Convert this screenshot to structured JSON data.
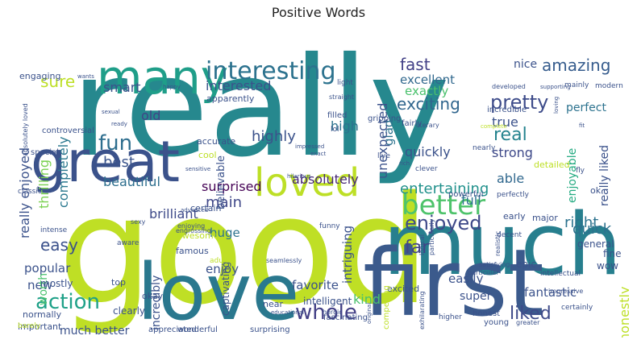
{
  "chart_data": {
    "type": "wordcloud",
    "title": "Positive Words",
    "words": [
      {
        "text": "really",
        "weight": 1.0,
        "color": "#26888e"
      },
      {
        "text": "good",
        "weight": 0.95,
        "color": "#bfdf25"
      },
      {
        "text": "much",
        "weight": 0.62,
        "color": "#277f8e"
      },
      {
        "text": "first",
        "weight": 0.62,
        "color": "#3b5a8c"
      },
      {
        "text": "love",
        "weight": 0.55,
        "color": "#2a788e"
      },
      {
        "text": "great",
        "weight": 0.45,
        "color": "#3b528b"
      },
      {
        "text": "many",
        "weight": 0.38,
        "color": "#1f9e89"
      },
      {
        "text": "loved",
        "weight": 0.36,
        "color": "#bddf26"
      },
      {
        "text": "interesting",
        "weight": 0.22,
        "color": "#2c728e"
      },
      {
        "text": "better",
        "weight": 0.18,
        "color": "#4ec36b"
      },
      {
        "text": "action",
        "weight": 0.15,
        "color": "#1fa188"
      },
      {
        "text": "whole",
        "weight": 0.15,
        "color": "#423f85"
      },
      {
        "text": "fun",
        "weight": 0.14,
        "color": "#2e6e8e"
      },
      {
        "text": "enjoyed",
        "weight": 0.12,
        "color": "#3e4989"
      },
      {
        "text": "pretty",
        "weight": 0.12,
        "color": "#3e4c8a"
      },
      {
        "text": "fast",
        "weight": 0.11,
        "color": "#424086"
      },
      {
        "text": "exciting",
        "weight": 0.11,
        "color": "#31668e"
      },
      {
        "text": "amazing",
        "weight": 0.1,
        "color": "#365c8d"
      },
      {
        "text": "easy",
        "weight": 0.1,
        "color": "#3b518b"
      },
      {
        "text": "far",
        "weight": 0.1,
        "color": "#414487"
      },
      {
        "text": "liked",
        "weight": 0.1,
        "color": "#3e4a89"
      },
      {
        "text": "real",
        "weight": 0.09,
        "color": "#25838e"
      },
      {
        "text": "quick",
        "weight": 0.09,
        "color": "#2d718e"
      },
      {
        "text": "right",
        "weight": 0.09,
        "color": "#2c728e"
      },
      {
        "text": "sure",
        "weight": 0.09,
        "color": "#bddf26"
      },
      {
        "text": "highly",
        "weight": 0.08,
        "color": "#3b528b"
      },
      {
        "text": "best",
        "weight": 0.08,
        "color": "#3a548c"
      },
      {
        "text": "beautiful",
        "weight": 0.08,
        "color": "#2e6f8e"
      },
      {
        "text": "absolutely",
        "weight": 0.08,
        "color": "#482878"
      },
      {
        "text": "entertaining",
        "weight": 0.08,
        "color": "#21918c"
      },
      {
        "text": "main",
        "weight": 0.08,
        "color": "#3f4788"
      },
      {
        "text": "brilliant",
        "weight": 0.08,
        "color": "#3e4a89"
      },
      {
        "text": "surprised",
        "weight": 0.07,
        "color": "#440154"
      },
      {
        "text": "really enjoyed",
        "weight": 0.08,
        "color": "#3b528b"
      },
      {
        "text": "thrilling",
        "weight": 0.07,
        "color": "#7ad151"
      },
      {
        "text": "completely",
        "weight": 0.07,
        "color": "#2a788e"
      },
      {
        "text": "old",
        "weight": 0.07,
        "color": "#414487"
      },
      {
        "text": "smart",
        "weight": 0.07,
        "color": "#3b528b"
      },
      {
        "text": "interested",
        "weight": 0.07,
        "color": "#3b528b"
      },
      {
        "text": "excellent",
        "weight": 0.07,
        "color": "#31688e"
      },
      {
        "text": "exactly",
        "weight": 0.07,
        "color": "#4ac16d"
      },
      {
        "text": "high",
        "weight": 0.07,
        "color": "#2c728e"
      },
      {
        "text": "quickly",
        "weight": 0.07,
        "color": "#3b528b"
      },
      {
        "text": "strong",
        "weight": 0.07,
        "color": "#3e4989"
      },
      {
        "text": "glad",
        "weight": 0.07,
        "color": "#2c728e"
      },
      {
        "text": "unexpected",
        "weight": 0.07,
        "color": "#3b528b"
      },
      {
        "text": "true",
        "weight": 0.07,
        "color": "#3b528b"
      },
      {
        "text": "perfect",
        "weight": 0.06,
        "color": "#2c728e"
      },
      {
        "text": "nice",
        "weight": 0.06,
        "color": "#3b528b"
      },
      {
        "text": "able",
        "weight": 0.07,
        "color": "#31688e"
      },
      {
        "text": "enjoyable",
        "weight": 0.06,
        "color": "#25ab82"
      },
      {
        "text": "really liked",
        "weight": 0.06,
        "color": "#3b528b"
      },
      {
        "text": "full",
        "weight": 0.07,
        "color": "#2c728e"
      },
      {
        "text": "popular",
        "weight": 0.06,
        "color": "#3b528b"
      },
      {
        "text": "new",
        "weight": 0.06,
        "color": "#3b528b"
      },
      {
        "text": "worth",
        "weight": 0.06,
        "color": "#4ac16d"
      },
      {
        "text": "huge",
        "weight": 0.06,
        "color": "#2c728e"
      },
      {
        "text": "enjoy",
        "weight": 0.06,
        "color": "#3b528b"
      },
      {
        "text": "favorite",
        "weight": 0.06,
        "color": "#3b528b"
      },
      {
        "text": "kind",
        "weight": 0.07,
        "color": "#4ac16d"
      },
      {
        "text": "intriguing",
        "weight": 0.06,
        "color": "#3b528b"
      },
      {
        "text": "easily",
        "weight": 0.06,
        "color": "#3b528b"
      },
      {
        "text": "fantastic",
        "weight": 0.06,
        "color": "#3b528b"
      },
      {
        "text": "super",
        "weight": 0.06,
        "color": "#3b528b"
      },
      {
        "text": "honestly",
        "weight": 0.06,
        "color": "#bddf26"
      },
      {
        "text": "much better",
        "weight": 0.06,
        "color": "#3b528b"
      },
      {
        "text": "incredibly",
        "weight": 0.06,
        "color": "#3b528b"
      },
      {
        "text": "believable",
        "weight": 0.05,
        "color": "#3b528b"
      },
      {
        "text": "mostly",
        "weight": 0.05,
        "color": "#3b528b"
      },
      {
        "text": "intelligent",
        "weight": 0.05,
        "color": "#3b528b"
      },
      {
        "text": "wow",
        "weight": 0.05,
        "color": "#3b528b"
      },
      {
        "text": "epic",
        "weight": 0.05,
        "color": "#3b528b"
      },
      {
        "text": "fine",
        "weight": 0.05,
        "color": "#3b528b"
      },
      {
        "text": "general",
        "weight": 0.05,
        "color": "#3b528b"
      },
      {
        "text": "captivating",
        "weight": 0.05,
        "color": "#3b528b"
      },
      {
        "text": "accurate",
        "weight": 0.04,
        "color": "#3b528b"
      },
      {
        "text": "cool",
        "weight": 0.04,
        "color": "#bddf26"
      },
      {
        "text": "detailed",
        "weight": 0.04,
        "color": "#bddf26"
      },
      {
        "text": "ok",
        "weight": 0.04,
        "color": "#3b528b"
      },
      {
        "text": "early",
        "weight": 0.04,
        "color": "#3b528b"
      },
      {
        "text": "major",
        "weight": 0.04,
        "color": "#3b528b"
      },
      {
        "text": "certain",
        "weight": 0.04,
        "color": "#3b528b"
      },
      {
        "text": "clearly",
        "weight": 0.04,
        "color": "#3b528b"
      },
      {
        "text": "normally",
        "weight": 0.04,
        "color": "#3b528b"
      },
      {
        "text": "important",
        "weight": 0.04,
        "color": "#3b528b"
      },
      {
        "text": "top",
        "weight": 0.04,
        "color": "#3b528b"
      },
      {
        "text": "okay",
        "weight": 0.04,
        "color": "#3b528b"
      },
      {
        "text": "near",
        "weight": 0.04,
        "color": "#3b528b"
      },
      {
        "text": "awesome",
        "weight": 0.04,
        "color": "#bddf26"
      },
      {
        "text": "famous",
        "weight": 0.04,
        "color": "#3b528b"
      },
      {
        "text": "excited",
        "weight": 0.04,
        "color": "#3b528b"
      },
      {
        "text": "clever",
        "weight": 0.03,
        "color": "#3b528b"
      },
      {
        "text": "apparently",
        "weight": 0.04,
        "color": "#3b528b"
      },
      {
        "text": "engaging",
        "weight": 0.04,
        "color": "#3b528b"
      },
      {
        "text": "gripping",
        "weight": 0.04,
        "color": "#3b528b"
      },
      {
        "text": "incredible",
        "weight": 0.04,
        "color": "#3b528b"
      },
      {
        "text": "filled",
        "weight": 0.04,
        "color": "#3b528b"
      },
      {
        "text": "fairly",
        "weight": 0.04,
        "color": "#3b528b"
      },
      {
        "text": "lol",
        "weight": 0.04,
        "color": "#3b528b"
      },
      {
        "text": "nearly",
        "weight": 0.04,
        "color": "#3b528b"
      },
      {
        "text": "modern",
        "weight": 0.03,
        "color": "#3b528b"
      },
      {
        "text": "mainly",
        "weight": 0.03,
        "color": "#3b528b"
      },
      {
        "text": "light",
        "weight": 0.03,
        "color": "#3b528b"
      },
      {
        "text": "straight",
        "weight": 0.03,
        "color": "#3b528b"
      },
      {
        "text": "literary",
        "weight": 0.03,
        "color": "#3b528b"
      },
      {
        "text": "developed",
        "weight": 0.03,
        "color": "#3b528b"
      },
      {
        "text": "controversial",
        "weight": 0.04,
        "color": "#3b528b"
      },
      {
        "text": "special",
        "weight": 0.04,
        "color": "#3b528b"
      },
      {
        "text": "classic",
        "weight": 0.04,
        "color": "#3b528b"
      },
      {
        "text": "absolutely loved",
        "weight": 0.04,
        "color": "#3b528b"
      },
      {
        "text": "live",
        "weight": 0.04,
        "color": "#3b528b"
      },
      {
        "text": "powerful",
        "weight": 0.04,
        "color": "#3b528b"
      },
      {
        "text": "perfectly",
        "weight": 0.04,
        "color": "#3b528b"
      },
      {
        "text": "fly",
        "weight": 0.03,
        "color": "#3b528b"
      },
      {
        "text": "realistic",
        "weight": 0.03,
        "color": "#3b528b"
      },
      {
        "text": "decent",
        "weight": 0.03,
        "color": "#3b528b"
      },
      {
        "text": "intellectual",
        "weight": 0.03,
        "color": "#3b528b"
      },
      {
        "text": "satisfying",
        "weight": 0.03,
        "color": "#3b528b"
      },
      {
        "text": "particular",
        "weight": 0.03,
        "color": "#3b528b"
      },
      {
        "text": "funny",
        "weight": 0.03,
        "color": "#3b528b"
      },
      {
        "text": "aware",
        "weight": 0.03,
        "color": "#3b528b"
      },
      {
        "text": "intense",
        "weight": 0.03,
        "color": "#3b528b"
      },
      {
        "text": "adult",
        "weight": 0.03,
        "color": "#bddf26"
      },
      {
        "text": "seamlessly",
        "weight": 0.03,
        "color": "#3b528b"
      },
      {
        "text": "logical",
        "weight": 0.03,
        "color": "#3b528b"
      },
      {
        "text": "particularly",
        "weight": 0.03,
        "color": "#3b528b"
      },
      {
        "text": "heroic",
        "weight": 0.03,
        "color": "#3b528b"
      },
      {
        "text": "higher",
        "weight": 0.03,
        "color": "#3b528b"
      },
      {
        "text": "honest",
        "weight": 0.03,
        "color": "#3b528b"
      },
      {
        "text": "young",
        "weight": 0.04,
        "color": "#3b528b"
      },
      {
        "text": "certainly",
        "weight": 0.03,
        "color": "#3b528b"
      },
      {
        "text": "impressive",
        "weight": 0.03,
        "color": "#3b528b"
      },
      {
        "text": "greater",
        "weight": 0.03,
        "color": "#3b528b"
      },
      {
        "text": "fascinating",
        "weight": 0.03,
        "color": "#3b528b"
      },
      {
        "text": "compelling",
        "weight": 0.04,
        "color": "#bddf26"
      },
      {
        "text": "exhilarating",
        "weight": 0.03,
        "color": "#3b528b"
      },
      {
        "text": "appreciated",
        "weight": 0.03,
        "color": "#3b528b"
      },
      {
        "text": "wonderful",
        "weight": 0.03,
        "color": "#3b528b"
      },
      {
        "text": "surprising",
        "weight": 0.03,
        "color": "#3b528b"
      },
      {
        "text": "barely",
        "weight": 0.03,
        "color": "#bddf26"
      },
      {
        "text": "enjoying",
        "weight": 0.03,
        "color": "#3b528b"
      },
      {
        "text": "engrossing",
        "weight": 0.03,
        "color": "#3b528b"
      },
      {
        "text": "sexy",
        "weight": 0.03,
        "color": "#3b528b"
      },
      {
        "text": "hilarious",
        "weight": 0.03,
        "color": "#3b528b"
      },
      {
        "text": "impressed",
        "weight": 0.03,
        "color": "#3b528b"
      },
      {
        "text": "exact",
        "weight": 0.02,
        "color": "#3b528b"
      },
      {
        "text": "rich",
        "weight": 0.02,
        "color": "#3b528b"
      },
      {
        "text": "wants",
        "weight": 0.02,
        "color": "#3b528b"
      },
      {
        "text": "happy",
        "weight": 0.02,
        "color": "#3b528b"
      },
      {
        "text": "sexual",
        "weight": 0.02,
        "color": "#3b528b"
      },
      {
        "text": "ready",
        "weight": 0.02,
        "color": "#3b528b"
      },
      {
        "text": "supporting",
        "weight": 0.02,
        "color": "#3b528b"
      },
      {
        "text": "loving",
        "weight": 0.02,
        "color": "#3b528b"
      },
      {
        "text": "fit",
        "weight": 0.02,
        "color": "#3b528b"
      },
      {
        "text": "complete",
        "weight": 0.02,
        "color": "#bddf26"
      },
      {
        "text": "sensitive",
        "weight": 0.02,
        "color": "#3b528b"
      },
      {
        "text": "advanced",
        "weight": 0.02,
        "color": "#3b528b"
      },
      {
        "text": "educational",
        "weight": 0.02,
        "color": "#3b528b"
      },
      {
        "text": "original",
        "weight": 0.02,
        "color": "#3b528b"
      }
    ]
  }
}
